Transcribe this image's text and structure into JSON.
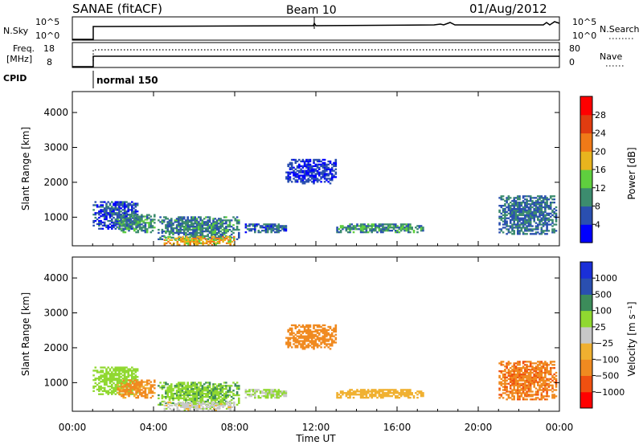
{
  "header": {
    "station": "SANAE (fitACF)",
    "beam": "Beam 10",
    "date": "01/Aug/2012"
  },
  "meta_panels": {
    "nsky": {
      "label": "N.Sky",
      "ticks": [
        "10^5",
        "10^0"
      ]
    },
    "nsearch": {
      "label": "N.Search",
      "ticks": [
        "10^5",
        "10^0"
      ]
    },
    "freq": {
      "label_top": "Freq.",
      "label_bottom": "[MHz]",
      "ticks": [
        "18",
        "8"
      ]
    },
    "nave": {
      "label": "Nave",
      "ticks": [
        "80",
        "0"
      ]
    },
    "cpid": {
      "label": "CPID",
      "mode": "normal 150"
    }
  },
  "colors": {
    "power_scale": [
      "#0000ff",
      "#2a4fb0",
      "#3c8c6e",
      "#5fcf3e",
      "#e8b41e",
      "#f07a18",
      "#e03c10",
      "#ff0000"
    ],
    "velocity_scale": [
      "#ff0000",
      "#f05010",
      "#f08a20",
      "#f0b030",
      "#c8c8c8",
      "#90d830",
      "#3c8c5a",
      "#2a4fb0",
      "#1a2fd8"
    ]
  },
  "chart_data": [
    {
      "type": "heatmap",
      "title": "",
      "xlabel": "Time UT",
      "ylabel": "Slant Range [km]",
      "x_ticks": [
        "00:00",
        "04:00",
        "08:00",
        "12:00",
        "16:00",
        "20:00",
        "00:00"
      ],
      "y_ticks": [
        "1000",
        "2000",
        "3000",
        "4000"
      ],
      "xlim": [
        0,
        24
      ],
      "ylim": [
        180,
        4600
      ],
      "colorbar": {
        "label": "Power [dB]",
        "ticks": [
          "4",
          "8",
          "12",
          "16",
          "20",
          "24",
          "28"
        ],
        "range": [
          0,
          30
        ]
      },
      "echo_regions": [
        {
          "t": [
            1.0,
            3.2
          ],
          "r": [
            650,
            1450
          ],
          "value": 6
        },
        {
          "t": [
            2.2,
            4.0
          ],
          "r": [
            550,
            1050
          ],
          "value": 10
        },
        {
          "t": [
            4.2,
            8.2
          ],
          "r": [
            350,
            1000
          ],
          "value": 9
        },
        {
          "t": [
            4.5,
            8.0
          ],
          "r": [
            190,
            420
          ],
          "value": 18
        },
        {
          "t": [
            8.5,
            10.5
          ],
          "r": [
            550,
            800
          ],
          "value": 7
        },
        {
          "t": [
            13.0,
            17.3
          ],
          "r": [
            550,
            820
          ],
          "value": 10
        },
        {
          "t": [
            10.5,
            13.0
          ],
          "r": [
            1950,
            2650
          ],
          "value": 4
        },
        {
          "t": [
            21.0,
            23.8
          ],
          "r": [
            500,
            1600
          ],
          "value": 8
        }
      ]
    },
    {
      "type": "heatmap",
      "title": "",
      "xlabel": "Time UT",
      "ylabel": "Slant Range [km]",
      "x_ticks": [
        "00:00",
        "04:00",
        "08:00",
        "12:00",
        "16:00",
        "20:00",
        "00:00"
      ],
      "y_ticks": [
        "1000",
        "2000",
        "3000",
        "4000"
      ],
      "xlim": [
        0,
        24
      ],
      "ylim": [
        180,
        4600
      ],
      "colorbar": {
        "label": "Velocity [m s⁻¹]",
        "ticks": [
          "1000",
          "500",
          "100",
          "25",
          "−25",
          "−100",
          "−500",
          "−1000"
        ]
      },
      "echo_regions": [
        {
          "t": [
            1.0,
            3.2
          ],
          "r": [
            650,
            1450
          ],
          "value": 60
        },
        {
          "t": [
            2.2,
            4.0
          ],
          "r": [
            550,
            1050
          ],
          "value": -150
        },
        {
          "t": [
            4.2,
            8.2
          ],
          "r": [
            350,
            1000
          ],
          "value": 80
        },
        {
          "t": [
            4.5,
            8.0
          ],
          "r": [
            190,
            420
          ],
          "value": 0
        },
        {
          "t": [
            8.5,
            10.5
          ],
          "r": [
            550,
            800
          ],
          "value": 30
        },
        {
          "t": [
            13.0,
            17.3
          ],
          "r": [
            550,
            820
          ],
          "value": -60
        },
        {
          "t": [
            10.5,
            13.0
          ],
          "r": [
            1950,
            2650
          ],
          "value": -300
        },
        {
          "t": [
            21.0,
            23.8
          ],
          "r": [
            500,
            1600
          ],
          "value": -400
        }
      ]
    }
  ]
}
